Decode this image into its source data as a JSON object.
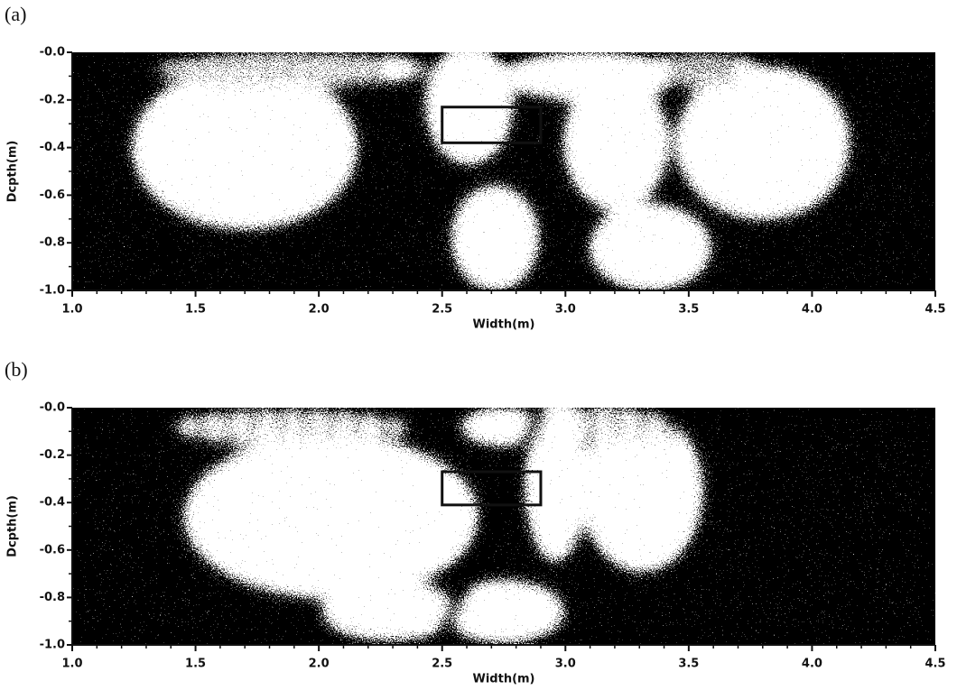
{
  "chart_data": [
    {
      "type": "image",
      "title": "(a)",
      "xlabel": "Width(m)",
      "ylabel": "Dcpth(m)",
      "xlim": [
        1.0,
        4.5
      ],
      "ylim": [
        -1.0,
        0.0
      ],
      "xticks": [
        {
          "value": 1.0,
          "label": "1.0"
        },
        1.5,
        {
          "value": 2.0,
          "label": "2.0"
        },
        2.5,
        {
          "value": 3.0,
          "label": "3.0"
        },
        3.5,
        {
          "value": 4.0,
          "label": "4.0"
        },
        4.5
      ],
      "yticks": [
        {
          "value": 0.0,
          "label": "-0.0"
        },
        -0.2,
        -0.4,
        -0.6,
        -0.8,
        {
          "value": -1.0,
          "label": "-1.0"
        }
      ],
      "box": {
        "x": [
          2.5,
          2.9
        ],
        "y": [
          -0.38,
          -0.23
        ]
      }
    },
    {
      "type": "image",
      "title": "(b)",
      "xlabel": "Width(m)",
      "ylabel": "Dcpth(m)",
      "xlim": [
        1.0,
        4.5
      ],
      "ylim": [
        -1.0,
        0.0
      ],
      "xticks": [
        {
          "value": 1.0,
          "label": "1.0"
        },
        1.5,
        {
          "value": 2.0,
          "label": "2.0"
        },
        2.5,
        {
          "value": 3.0,
          "label": "3.0"
        },
        3.5,
        {
          "value": 4.0,
          "label": "4.0"
        },
        4.5
      ],
      "yticks": [
        {
          "value": 0.0,
          "label": "-0.0"
        },
        -0.2,
        -0.4,
        -0.6,
        -0.8,
        {
          "value": -1.0,
          "label": "-1.0"
        }
      ],
      "box": {
        "x": [
          2.5,
          2.9
        ],
        "y": [
          -0.41,
          -0.27
        ]
      }
    }
  ]
}
